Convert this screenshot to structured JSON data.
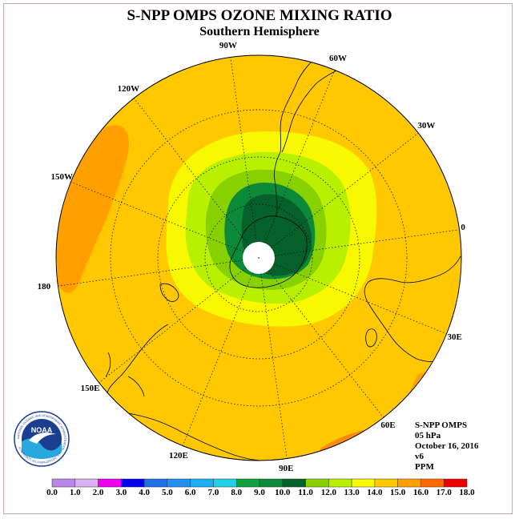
{
  "title": "S-NPP OMPS OZONE MIXING RATIO",
  "subtitle": "Southern Hemisphere",
  "longitude_labels": [
    {
      "text": "90W",
      "lon": -90
    },
    {
      "text": "60W",
      "lon": -60
    },
    {
      "text": "120W",
      "lon": -120
    },
    {
      "text": "30W",
      "lon": -30
    },
    {
      "text": "150W",
      "lon": -150
    },
    {
      "text": "0",
      "lon": 0
    },
    {
      "text": "180",
      "lon": 180
    },
    {
      "text": "30E",
      "lon": 30
    },
    {
      "text": "150E",
      "lon": 150
    },
    {
      "text": "60E",
      "lon": 60
    },
    {
      "text": "120E",
      "lon": 120
    },
    {
      "text": "90E",
      "lon": 90
    }
  ],
  "info": {
    "instrument": "S-NPP OMPS",
    "level": "05 hPa",
    "date": "October 16, 2016",
    "version": "v6",
    "units": "PPM"
  },
  "colorbar": {
    "ticks": [
      "0.0",
      "1.0",
      "2.0",
      "3.0",
      "4.0",
      "5.0",
      "6.0",
      "7.0",
      "8.0",
      "9.0",
      "10.0",
      "11.0",
      "12.0",
      "13.0",
      "14.0",
      "15.0",
      "16.0",
      "17.0",
      "18.0"
    ],
    "colors": [
      "#b987e6",
      "#d7b1f0",
      "#ee00ee",
      "#0000ee",
      "#1f6fe6",
      "#1f8ff0",
      "#18b0f0",
      "#20d0e8",
      "#10a040",
      "#0c8a3a",
      "#06602a",
      "#88d000",
      "#b8f000",
      "#f8f800",
      "#ffc800",
      "#ffa000",
      "#ff6a00",
      "#ee0000",
      "#7a4a2a"
    ]
  },
  "map_colors": {
    "background_field": "#ffc800",
    "band_14_15": "#ffa000",
    "band_15_16": "#ff6a00",
    "yellow": "#f8f800",
    "yellow_green": "#b8f000",
    "light_green": "#88d000",
    "dark_green": "#06602a",
    "pole_hole": "#ffffff"
  },
  "logo": {
    "text": "NOAA",
    "ring_text": "NATIONAL OCEANIC AND ATMOSPHERIC ADMINISTRATION · U.S. DEPARTMENT OF COMMERCE"
  }
}
